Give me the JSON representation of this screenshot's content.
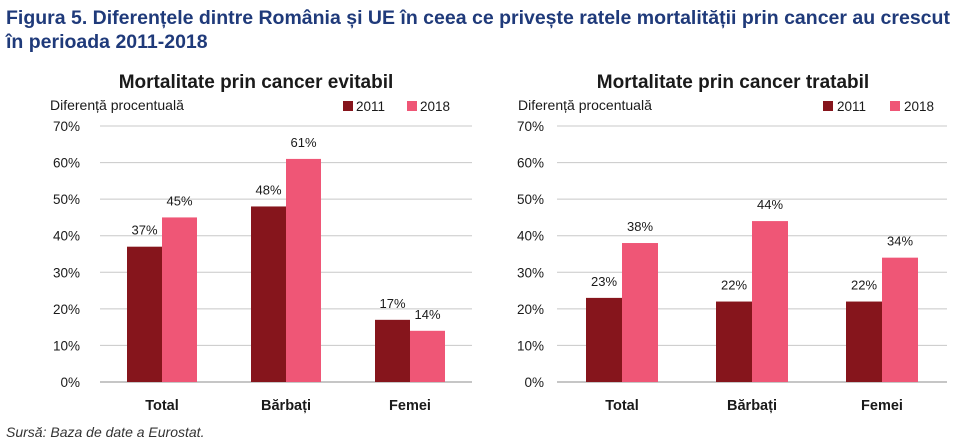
{
  "figure_title": "Figura 5. Diferențele dintre România și UE în ceea ce privește ratele mortalității prin cancer au crescut în perioada 2011-2018",
  "source": "Sursă: Baza de date a Eurostat.",
  "colors": {
    "series_2011": "#86151c",
    "series_2018": "#ef5676",
    "grid": "#c8c8c8",
    "title": "#1f3a7a"
  },
  "chart_data": [
    {
      "type": "bar",
      "title": "Mortalitate prin cancer evitabil",
      "ylabel": "Diferență procentuală",
      "categories": [
        "Total",
        "Bărbați",
        "Femei"
      ],
      "series": [
        {
          "name": "2011",
          "values": [
            37,
            48,
            17
          ],
          "labels": [
            "37%",
            "48%",
            "17%"
          ]
        },
        {
          "name": "2018",
          "values": [
            45,
            61,
            14
          ],
          "labels": [
            "45%",
            "61%",
            "14%"
          ]
        }
      ],
      "yticks": [
        0,
        10,
        20,
        30,
        40,
        50,
        60,
        70
      ],
      "ytick_labels": [
        "0%",
        "10%",
        "20%",
        "30%",
        "40%",
        "50%",
        "60%",
        "70%"
      ],
      "ylim": [
        0,
        70
      ],
      "grid": true,
      "legend": "top-right"
    },
    {
      "type": "bar",
      "title": "Mortalitate prin cancer tratabil",
      "ylabel": "Diferență procentuală",
      "categories": [
        "Total",
        "Bărbați",
        "Femei"
      ],
      "series": [
        {
          "name": "2011",
          "values": [
            23,
            22,
            22
          ],
          "labels": [
            "23%",
            "22%",
            "22%"
          ]
        },
        {
          "name": "2018",
          "values": [
            38,
            44,
            34
          ],
          "labels": [
            "38%",
            "44%",
            "34%"
          ]
        }
      ],
      "yticks": [
        0,
        10,
        20,
        30,
        40,
        50,
        60,
        70
      ],
      "ytick_labels": [
        "0%",
        "10%",
        "20%",
        "30%",
        "40%",
        "50%",
        "60%",
        "70%"
      ],
      "ylim": [
        0,
        70
      ],
      "grid": true,
      "legend": "top-right"
    }
  ]
}
